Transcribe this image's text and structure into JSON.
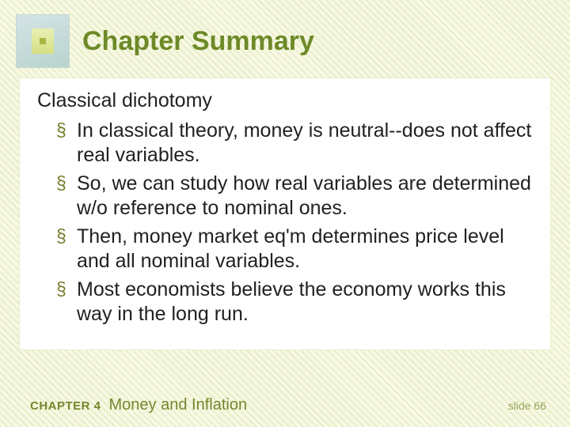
{
  "title": "Chapter Summary",
  "subhead": "Classical dichotomy",
  "bullets": [
    "In classical theory, money is neutral--does not affect real variables.",
    "So, we can study how real variables are determined w/o reference to nominal ones.",
    "Then, money market eq'm determines price level and all nominal variables.",
    "Most economists believe the economy works this way in the long run."
  ],
  "footer": {
    "chapter_label": "CHAPTER 4",
    "chapter_name": "Money and Inflation",
    "slide": "slide 66"
  },
  "style": {
    "accent_color": "#6d8a28",
    "bullet_color": "#767d2b",
    "card_bg": "#ffffff",
    "body_font_size_pt": 19,
    "title_font_size_pt": 26,
    "background_stripe_a": "#e9edc7",
    "background_stripe_b": "#f7f9e5"
  }
}
